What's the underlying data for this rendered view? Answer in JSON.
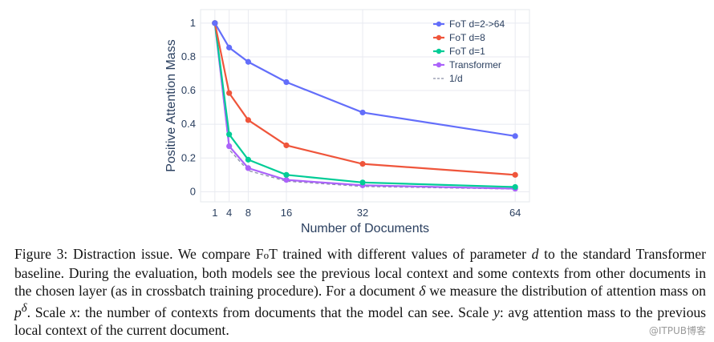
{
  "chart_data": {
    "type": "line",
    "x": [
      1,
      4,
      8,
      16,
      32,
      64
    ],
    "xlabel": "Number of Documents",
    "ylabel": "Positive Attention Mass",
    "xlim": [
      -2,
      67
    ],
    "ylim": [
      -0.06,
      1.08
    ],
    "xticks": [
      "1",
      "4",
      "8",
      "16",
      "32",
      "64"
    ],
    "yticks": [
      "0",
      "0.2",
      "0.4",
      "0.6",
      "0.8",
      "1"
    ],
    "grid": true,
    "legend_position": "top-right",
    "series": [
      {
        "name": "FoT d=2->64",
        "color": "#636efa",
        "dash": false,
        "markers": true,
        "values": [
          1.0,
          0.855,
          0.77,
          0.65,
          0.47,
          0.33
        ]
      },
      {
        "name": "FoT d=8",
        "color": "#ef553b",
        "dash": false,
        "markers": true,
        "values": [
          1.0,
          0.585,
          0.425,
          0.275,
          0.165,
          0.1
        ]
      },
      {
        "name": "FoT d=1",
        "color": "#00cc96",
        "dash": false,
        "markers": true,
        "values": [
          1.0,
          0.34,
          0.19,
          0.1,
          0.055,
          0.028
        ]
      },
      {
        "name": "Transformer",
        "color": "#ab63fa",
        "dash": false,
        "markers": true,
        "values": [
          1.0,
          0.27,
          0.14,
          0.07,
          0.038,
          0.018
        ]
      },
      {
        "name": "1/d",
        "color": "#8a8fa8",
        "dash": true,
        "markers": false,
        "values": [
          1.0,
          0.25,
          0.125,
          0.0625,
          0.03125,
          0.015625
        ]
      }
    ]
  },
  "caption": {
    "label": "Figure 3:",
    "t1": "Distraction issue. We compare F",
    "t1_smallcaps": "o",
    "t2": "T trained with different values of parameter ",
    "m1": "d",
    "t3": " to the standard Transformer baseline. During the evaluation, both models see the previous local context and some contexts from other documents in the chosen layer (as in crossbatch training procedure). For a document ",
    "m2": "δ",
    "t4": " we measure the distribution of attention mass on ",
    "m3": "p",
    "m3_sup": "δ",
    "t5": ". Scale ",
    "m4": "x",
    "t6": ": the number of contexts from documents that the model can see. Scale ",
    "m5": "y",
    "t7": ": avg attention mass to the previous local context of the current document."
  },
  "watermark": "@ITPUB博客"
}
